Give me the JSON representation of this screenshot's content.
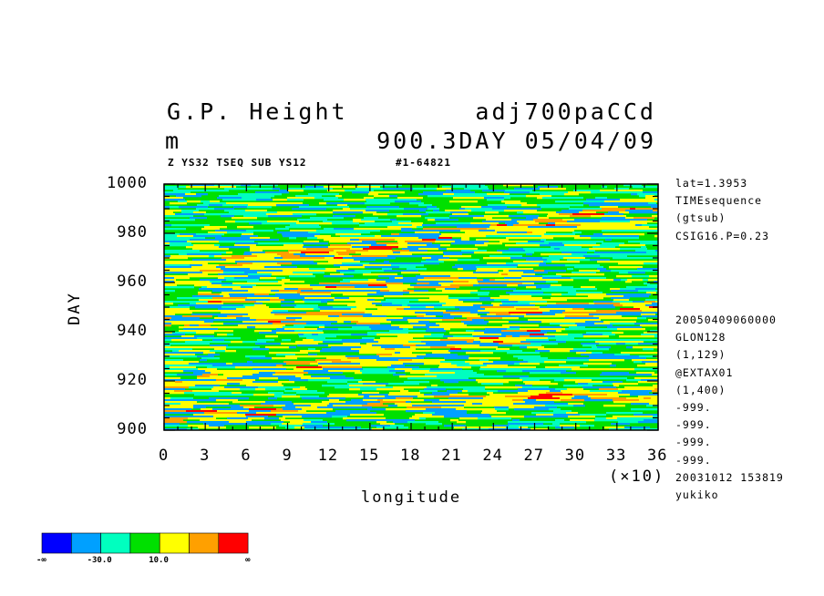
{
  "header": {
    "title_left": "G.P. Height",
    "title_right": "adj700paCCd",
    "unit": "m",
    "time_info": "900.3DAY 05/04/09",
    "subtitle_left": "Z YS32 TSEQ SUB YS12",
    "subtitle_right": "#1-64821"
  },
  "side_info": {
    "top": [
      "lat=1.3953",
      "TIMEsequence",
      "(gtsub)",
      "CSIG16.P=0.23"
    ],
    "bottom": [
      "20050409060000",
      "GLON128",
      "(1,129)",
      "@EXTAX01",
      "(1,400)",
      "-999.",
      "-999.",
      "-999.",
      "-999.",
      "20031012 153819",
      "yukiko"
    ]
  },
  "chart_data": {
    "type": "heatmap",
    "title": "G.P. Height",
    "xlabel": "longitude",
    "ylabel": "DAY",
    "x_multiplier": "(×10)",
    "xlim": [
      0,
      36
    ],
    "ylim": [
      900,
      1000
    ],
    "x_ticks": [
      "0",
      "3",
      "6",
      "9",
      "12",
      "15",
      "18",
      "21",
      "24",
      "27",
      "30",
      "33",
      "36"
    ],
    "y_ticks": [
      "900",
      "920",
      "940",
      "960",
      "980",
      "1000"
    ],
    "colorbar": {
      "colors": [
        "#0000ff",
        "#00a0ff",
        "#00ffbf",
        "#00e000",
        "#ffff00",
        "#ffa000",
        "#ff0000"
      ],
      "labels": [
        "-∞",
        "-30.0",
        "10.0",
        "∞"
      ]
    },
    "bands": [
      {
        "day_start": 906,
        "lon_start": 0,
        "day_end": 915,
        "lon_end": 36,
        "level": 4
      },
      {
        "day_start": 918,
        "lon_start": 0,
        "day_end": 937,
        "lon_end": 24,
        "level": 4
      },
      {
        "day_start": 944,
        "lon_start": 0,
        "day_end": 950,
        "lon_end": 36,
        "level": 4
      },
      {
        "day_start": 955,
        "lon_start": 6,
        "day_end": 962,
        "lon_end": 24,
        "level": 4
      },
      {
        "day_start": 976,
        "lon_start": 15,
        "day_end": 990,
        "lon_end": 36,
        "level": 4
      },
      {
        "day_start": 965,
        "lon_start": 0,
        "day_end": 975,
        "lon_end": 18,
        "level": 4
      }
    ]
  }
}
